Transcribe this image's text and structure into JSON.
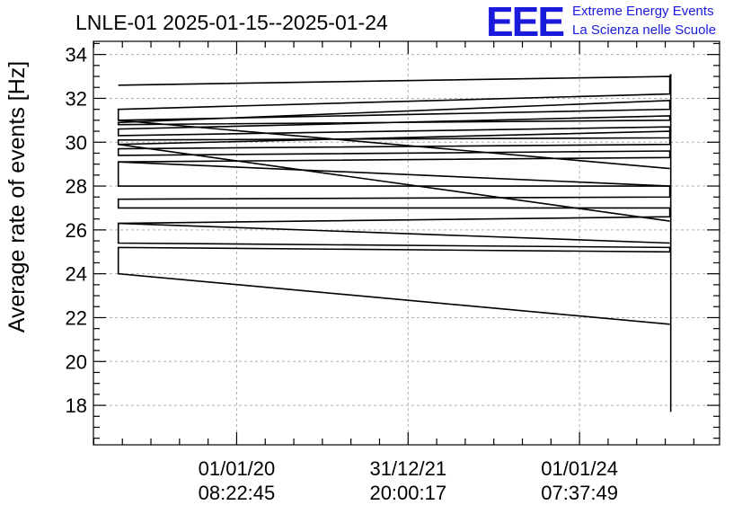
{
  "chart_data": {
    "type": "line",
    "title": "LNLE-01 2025-01-15--2025-01-24",
    "logo": {
      "mark": "EEE",
      "line1": "Extreme Energy Events",
      "line2": "La Scienza nelle Scuole"
    },
    "ylabel": "Average rate of events [Hz]",
    "xlabel": "",
    "ylim": [
      16.2,
      34.6
    ],
    "yticks": [
      18,
      20,
      22,
      24,
      26,
      28,
      30,
      32,
      34
    ],
    "xlim": [
      "2018-05-01T00:00:00",
      "2025-08-20T00:00:00"
    ],
    "xticks": [
      {
        "x": "2020-01-01T08:22:45",
        "line1": "01/01/20",
        "line2": "08:22:45"
      },
      {
        "x": "2021-12-31T20:00:17",
        "line1": "31/12/21",
        "line2": "20:00:17"
      },
      {
        "x": "2024-01-01T07:37:49",
        "line1": "01/01/24",
        "line2": "07:37:49"
      }
    ],
    "grid": true,
    "x_start": "2018-08-15T00:00:00",
    "x_end": "2025-01-20T00:00:00",
    "x_last": "2025-01-24T00:00:00",
    "start_values": [
      32.6,
      31.5,
      31.0,
      30.9,
      30.8,
      30.6,
      30.3,
      30.1,
      29.9,
      29.7,
      29.4,
      29.1,
      28.0,
      27.4,
      27.0,
      26.3,
      25.4,
      25.2,
      24.0
    ],
    "end_values": [
      33.0,
      32.2,
      31.9,
      31.5,
      31.2,
      31.0,
      30.7,
      30.5,
      30.2,
      29.9,
      29.6,
      29.3,
      28.8,
      28.0,
      27.5,
      27.0,
      26.6,
      26.4,
      25.4,
      25.2,
      25.0,
      21.7
    ],
    "last_range": [
      17.7,
      33.1
    ]
  }
}
